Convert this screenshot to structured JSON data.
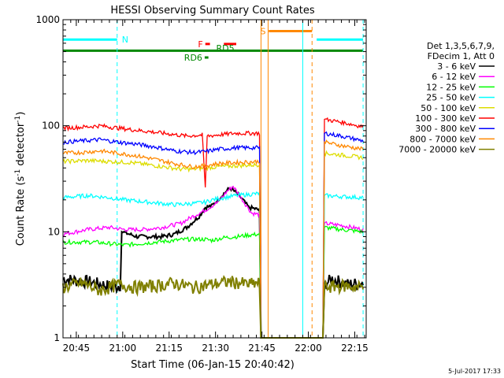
{
  "chart_data": {
    "type": "line",
    "title": "HESSI Observing Summary Count Rates",
    "xlabel": "Start Time (06-Jan-15 20:40:42)",
    "ylabel_main": "Count Rate (s",
    "ylabel_sup1": "-1",
    "ylabel_mid": " detector",
    "ylabel_sup2": "-1",
    "ylabel_end": ")",
    "y_scale": "log",
    "ylim": [
      1,
      1000
    ],
    "xlim_minutes": [
      0,
      98
    ],
    "y_ticks": [
      {
        "value": 1,
        "label": "1"
      },
      {
        "value": 10,
        "label": "10"
      },
      {
        "value": 100,
        "label": "100"
      },
      {
        "value": 1000,
        "label": "1000"
      }
    ],
    "x_ticks": [
      {
        "minute": 4.3,
        "label": "20:45"
      },
      {
        "minute": 19.3,
        "label": "21:00"
      },
      {
        "minute": 34.3,
        "label": "21:15"
      },
      {
        "minute": 49.3,
        "label": "21:30"
      },
      {
        "minute": 64.3,
        "label": "21:45"
      },
      {
        "minute": 79.3,
        "label": "22:00"
      },
      {
        "minute": 94.3,
        "label": "22:15"
      }
    ],
    "legend_header": [
      "Det 1,3,5,6,7,9,",
      "FDecim 1, Att 0"
    ],
    "series": [
      {
        "name": "3 - 6 keV",
        "color": "#000000",
        "points": [
          [
            0,
            3.6
          ],
          [
            8,
            3.4
          ],
          [
            17,
            3.0
          ],
          [
            18.5,
            3.2
          ],
          [
            19,
            10
          ],
          [
            24,
            9
          ],
          [
            32,
            9
          ],
          [
            36,
            9.5
          ],
          [
            40,
            11
          ],
          [
            44,
            14
          ],
          [
            46,
            17
          ],
          [
            48,
            17.5
          ],
          [
            50,
            20
          ],
          [
            52,
            23
          ],
          [
            54,
            26
          ],
          [
            57,
            22
          ],
          [
            60,
            17
          ],
          [
            62,
            16.5
          ],
          [
            63.5,
            16
          ],
          [
            64,
            1
          ],
          [
            84,
            1
          ],
          [
            84.5,
            3.2
          ],
          [
            87,
            3.6
          ],
          [
            92,
            3.2
          ],
          [
            97,
            3.3
          ]
        ]
      },
      {
        "name": "6 - 12 keV",
        "color": "#ff00ff",
        "points": [
          [
            0,
            9.5
          ],
          [
            8,
            10.5
          ],
          [
            15,
            11
          ],
          [
            20,
            10.5
          ],
          [
            26,
            10.5
          ],
          [
            32,
            11
          ],
          [
            38,
            12
          ],
          [
            42,
            14
          ],
          [
            46,
            16
          ],
          [
            50,
            19
          ],
          [
            53,
            24
          ],
          [
            55,
            27
          ],
          [
            58,
            20
          ],
          [
            61,
            15
          ],
          [
            63.5,
            14.5
          ],
          [
            64,
            1
          ],
          [
            84,
            1
          ],
          [
            84.5,
            12
          ],
          [
            90,
            11.5
          ],
          [
            97,
            10.5
          ]
        ]
      },
      {
        "name": "12 - 25 keV",
        "color": "#00ff00",
        "points": [
          [
            0,
            8.0
          ],
          [
            10,
            8.0
          ],
          [
            20,
            7.5
          ],
          [
            30,
            8.0
          ],
          [
            40,
            8.5
          ],
          [
            46,
            8.5
          ],
          [
            48,
            8.3
          ],
          [
            52,
            8.8
          ],
          [
            56,
            9.0
          ],
          [
            60,
            9.3
          ],
          [
            63.5,
            9.5
          ],
          [
            64,
            1
          ],
          [
            84,
            1
          ],
          [
            84.5,
            11
          ],
          [
            90,
            10.5
          ],
          [
            97,
            10.0
          ]
        ]
      },
      {
        "name": "25 - 50 keV",
        "color": "#00ffff",
        "points": [
          [
            0,
            21
          ],
          [
            8,
            22
          ],
          [
            15,
            21
          ],
          [
            20,
            20
          ],
          [
            28,
            19
          ],
          [
            36,
            18
          ],
          [
            42,
            18.5
          ],
          [
            46,
            19
          ],
          [
            48,
            20
          ],
          [
            52,
            21
          ],
          [
            56,
            22
          ],
          [
            60,
            22.5
          ],
          [
            63.5,
            23
          ],
          [
            64,
            1
          ],
          [
            84,
            1
          ],
          [
            84.5,
            22
          ],
          [
            90,
            21.5
          ],
          [
            97,
            21
          ]
        ]
      },
      {
        "name": "50 - 100 keV",
        "color": "#dddd00",
        "points": [
          [
            0,
            46
          ],
          [
            8,
            47
          ],
          [
            15,
            46
          ],
          [
            22,
            45
          ],
          [
            30,
            42
          ],
          [
            38,
            39
          ],
          [
            42,
            39
          ],
          [
            46,
            40
          ],
          [
            50,
            41
          ],
          [
            56,
            42
          ],
          [
            63.5,
            43
          ],
          [
            64,
            1
          ],
          [
            84,
            1
          ],
          [
            84.5,
            55
          ],
          [
            90,
            53
          ],
          [
            97,
            50
          ]
        ]
      },
      {
        "name": "100 - 300 keV",
        "color": "#ff0000",
        "points": [
          [
            0,
            95
          ],
          [
            6,
            97
          ],
          [
            12,
            100
          ],
          [
            18,
            95
          ],
          [
            22,
            92
          ],
          [
            28,
            88
          ],
          [
            34,
            84
          ],
          [
            40,
            80
          ],
          [
            45,
            82
          ],
          [
            46,
            26
          ],
          [
            46.6,
            80
          ],
          [
            50,
            82
          ],
          [
            56,
            85
          ],
          [
            63.5,
            85
          ],
          [
            64,
            1
          ],
          [
            84,
            1
          ],
          [
            84.5,
            115
          ],
          [
            90,
            108
          ],
          [
            97,
            98
          ]
        ]
      },
      {
        "name": "300 - 800 keV",
        "color": "#0000ff",
        "points": [
          [
            0,
            70
          ],
          [
            6,
            72
          ],
          [
            12,
            74
          ],
          [
            18,
            70
          ],
          [
            24,
            67
          ],
          [
            30,
            63
          ],
          [
            36,
            58
          ],
          [
            42,
            56
          ],
          [
            46,
            57
          ],
          [
            50,
            60
          ],
          [
            56,
            62
          ],
          [
            63.5,
            62
          ],
          [
            64,
            1
          ],
          [
            84,
            1
          ],
          [
            84.5,
            85
          ],
          [
            90,
            80
          ],
          [
            97,
            72
          ]
        ]
      },
      {
        "name": "800 - 7000 keV",
        "color": "#ff8800",
        "points": [
          [
            0,
            55
          ],
          [
            6,
            56
          ],
          [
            12,
            58
          ],
          [
            18,
            55
          ],
          [
            24,
            52
          ],
          [
            30,
            48
          ],
          [
            36,
            44
          ],
          [
            42,
            41
          ],
          [
            46,
            42
          ],
          [
            50,
            44
          ],
          [
            56,
            45
          ],
          [
            63.5,
            46
          ],
          [
            64,
            1
          ],
          [
            84,
            1
          ],
          [
            84.5,
            70
          ],
          [
            90,
            65
          ],
          [
            97,
            60
          ]
        ]
      },
      {
        "name": "7000 - 20000 keV",
        "color": "#808000",
        "points": [
          [
            0,
            3.0
          ],
          [
            6,
            3.3
          ],
          [
            12,
            2.8
          ],
          [
            18,
            3.2
          ],
          [
            24,
            3.0
          ],
          [
            30,
            3.1
          ],
          [
            36,
            3.3
          ],
          [
            42,
            3.0
          ],
          [
            48,
            3.2
          ],
          [
            54,
            3.4
          ],
          [
            60,
            3.2
          ],
          [
            63.5,
            3.3
          ],
          [
            64,
            1
          ],
          [
            84,
            1
          ],
          [
            84.5,
            3.0
          ],
          [
            90,
            3.1
          ],
          [
            97,
            3.0
          ]
        ]
      }
    ],
    "flags": [
      {
        "label": "N",
        "color": "#00ffff",
        "text_color": "#00ffff",
        "y": 650,
        "segments": [
          [
            0,
            17.5
          ],
          [
            82,
            97
          ]
        ]
      },
      {
        "label": "S",
        "color": "#ff8800",
        "text_color": "#ff8800",
        "y": 780,
        "segments": [
          [
            66.5,
            80.5
          ]
        ]
      },
      {
        "label": "F",
        "color": "#ff0000",
        "text_color": "#ff0000",
        "y": 590,
        "segments": [
          [
            46,
            47.5
          ],
          [
            52,
            56
          ]
        ]
      },
      {
        "label": "RD5",
        "color": "#ff0000",
        "text_color": "#008800",
        "y": 590,
        "segments": []
      },
      {
        "label": "RD6",
        "color": "#008800",
        "text_color": "#008800",
        "y": 440,
        "segments": [
          [
            45.8,
            47
          ]
        ]
      },
      {
        "label": "",
        "color": "#008800",
        "text_color": "#008800",
        "y": 510,
        "segments": [
          [
            0,
            97
          ]
        ]
      }
    ],
    "vlines": [
      {
        "minute": 0,
        "color": "#00ffff",
        "style": "solid"
      },
      {
        "minute": 17.5,
        "color": "#00ffff",
        "style": "dashed"
      },
      {
        "minute": 64.0,
        "color": "#ff8800",
        "style": "solid"
      },
      {
        "minute": 66.3,
        "color": "#ff8800",
        "style": "solid"
      },
      {
        "minute": 77.5,
        "color": "#00ffff",
        "style": "solid"
      },
      {
        "minute": 80.5,
        "color": "#ff8800",
        "style": "dashed"
      },
      {
        "minute": 97,
        "color": "#00ffff",
        "style": "dashed"
      }
    ],
    "footer_date": "5-Jul-2017 17:33"
  }
}
